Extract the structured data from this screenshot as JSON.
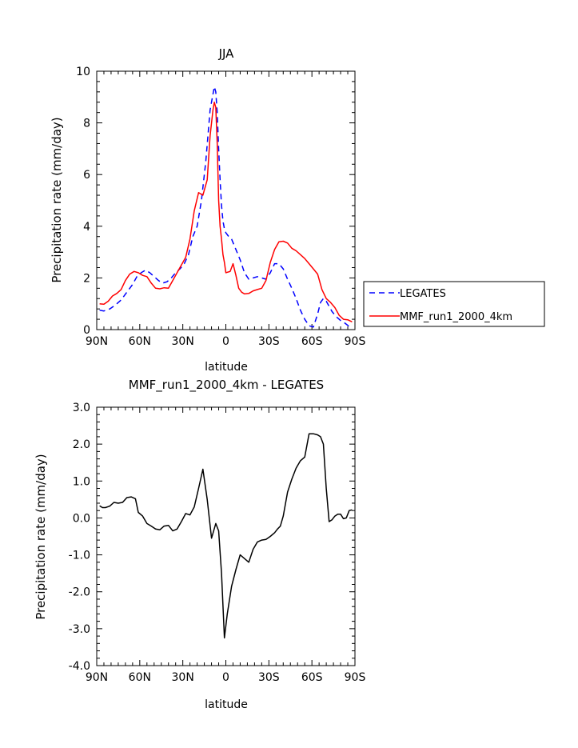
{
  "chart_data": [
    {
      "type": "line",
      "title": "JJA",
      "xlabel": "latitude",
      "ylabel": "Precipitation rate (mm/day)",
      "xlim": [
        90,
        -90
      ],
      "ylim": [
        0,
        10
      ],
      "x_ticks": [
        90,
        60,
        30,
        0,
        -30,
        -60,
        -90
      ],
      "x_tick_labels": [
        "90N",
        "60N",
        "30N",
        "0",
        "30S",
        "60S",
        "90S"
      ],
      "y_ticks": [
        0,
        2,
        4,
        6,
        8,
        10
      ],
      "y_tick_labels": [
        "0",
        "2",
        "4",
        "6",
        "8",
        "10"
      ],
      "legend_position": "right",
      "series": [
        {
          "name": "LEGATES",
          "color": "#0000ff",
          "dash": "dashed",
          "x": [
            88,
            85,
            81,
            77,
            73,
            69,
            65,
            62,
            59,
            56,
            53,
            50,
            47,
            44,
            41,
            38,
            35,
            32,
            29,
            26,
            23,
            20,
            17,
            14,
            11,
            8,
            7,
            6,
            5,
            4,
            3,
            2,
            1,
            0,
            -2,
            -4,
            -7,
            -10,
            -13,
            -16,
            -19,
            -22,
            -25,
            -28,
            -31,
            -34,
            -37,
            -40,
            -43,
            -46,
            -49,
            -52,
            -55,
            -58,
            -61,
            -64,
            -66,
            -68,
            -70,
            -72,
            -74,
            -77,
            -80,
            -83,
            -86,
            -88
          ],
          "y": [
            0.75,
            0.72,
            0.8,
            0.95,
            1.15,
            1.45,
            1.75,
            2.05,
            2.2,
            2.3,
            2.2,
            2.05,
            1.9,
            1.8,
            1.85,
            2.0,
            2.2,
            2.35,
            2.55,
            2.9,
            3.6,
            4.0,
            5.0,
            6.5,
            8.5,
            9.4,
            9.2,
            8.4,
            7.0,
            5.8,
            4.8,
            4.2,
            3.9,
            3.75,
            3.6,
            3.5,
            3.1,
            2.7,
            2.2,
            1.95,
            2.0,
            2.05,
            2.0,
            1.95,
            2.2,
            2.55,
            2.55,
            2.35,
            1.95,
            1.6,
            1.2,
            0.75,
            0.4,
            0.15,
            0.1,
            0.6,
            1.05,
            1.2,
            1.1,
            0.9,
            0.7,
            0.5,
            0.35,
            0.25,
            0.12,
            0.05
          ]
        },
        {
          "name": "MMF_run1_2000_4km",
          "color": "#ff0000",
          "dash": "solid",
          "x": [
            88,
            85,
            82,
            79,
            76,
            73,
            70,
            67,
            64,
            61,
            58,
            55,
            52,
            49,
            46,
            43,
            40,
            37,
            34,
            31,
            28,
            25,
            22,
            19,
            16,
            13,
            11,
            9,
            8,
            7,
            6,
            5,
            4,
            3,
            2,
            1,
            0,
            -3,
            -5,
            -7,
            -9,
            -11,
            -13,
            -16,
            -19,
            -22,
            -25,
            -28,
            -31,
            -34,
            -37,
            -40,
            -43,
            -46,
            -49,
            -52,
            -55,
            -58,
            -61,
            -64,
            -67,
            -70,
            -73,
            -76,
            -79,
            -82,
            -85,
            -88
          ],
          "y": [
            1.0,
            0.98,
            1.1,
            1.3,
            1.4,
            1.55,
            1.9,
            2.15,
            2.25,
            2.2,
            2.1,
            2.05,
            1.8,
            1.6,
            1.58,
            1.62,
            1.6,
            1.9,
            2.2,
            2.5,
            2.8,
            3.5,
            4.6,
            5.3,
            5.2,
            5.8,
            7.5,
            8.5,
            8.8,
            8.6,
            7.2,
            5.0,
            4.0,
            3.5,
            2.9,
            2.6,
            2.2,
            2.25,
            2.55,
            2.1,
            1.6,
            1.45,
            1.38,
            1.4,
            1.5,
            1.55,
            1.6,
            1.9,
            2.6,
            3.1,
            3.4,
            3.42,
            3.35,
            3.15,
            3.05,
            2.9,
            2.75,
            2.55,
            2.35,
            2.15,
            1.55,
            1.2,
            1.05,
            0.85,
            0.55,
            0.4,
            0.38,
            0.3
          ]
        }
      ]
    },
    {
      "type": "line",
      "title": "MMF_run1_2000_4km - LEGATES",
      "xlabel": "latitude",
      "ylabel": "Precipitation rate (mm/day)",
      "xlim": [
        90,
        -90
      ],
      "ylim": [
        -4,
        3
      ],
      "x_ticks": [
        90,
        60,
        30,
        0,
        -30,
        -60,
        -90
      ],
      "x_tick_labels": [
        "90N",
        "60N",
        "30N",
        "0",
        "30S",
        "60S",
        "90S"
      ],
      "y_ticks": [
        -4,
        -3,
        -2,
        -1,
        0,
        1,
        2,
        3
      ],
      "y_tick_labels": [
        "-4.0",
        "-3.0",
        "-2.0",
        "-1.0",
        "0.0",
        "1.0",
        "2.0",
        "3.0"
      ],
      "series": [
        {
          "color": "#000000",
          "dash": "solid",
          "x": [
            88,
            86,
            84,
            81,
            78,
            75,
            72,
            69,
            66,
            63,
            61,
            58,
            55,
            52,
            49,
            46,
            43,
            40,
            37,
            34,
            31,
            28,
            25,
            22,
            19,
            16,
            13,
            10,
            7,
            5,
            3,
            1,
            -1,
            -4,
            -7,
            -10,
            -13,
            -16,
            -19,
            -22,
            -25,
            -28,
            -31,
            -34,
            -36,
            -38,
            -40,
            -43,
            -46,
            -49,
            -52,
            -55,
            -58,
            -61,
            -64,
            -66,
            -68,
            -70,
            -72,
            -74,
            -76,
            -78,
            -80,
            -82,
            -84,
            -86,
            -88
          ],
          "y": [
            0.33,
            0.28,
            0.28,
            0.32,
            0.42,
            0.4,
            0.42,
            0.55,
            0.57,
            0.52,
            0.15,
            0.05,
            -0.15,
            -0.22,
            -0.3,
            -0.32,
            -0.22,
            -0.2,
            -0.35,
            -0.3,
            -0.1,
            0.12,
            0.08,
            0.3,
            0.8,
            1.32,
            0.5,
            -0.55,
            -0.15,
            -0.35,
            -1.5,
            -3.25,
            -2.6,
            -1.85,
            -1.4,
            -1.0,
            -1.1,
            -1.2,
            -0.85,
            -0.65,
            -0.6,
            -0.58,
            -0.5,
            -0.4,
            -0.3,
            -0.22,
            0.05,
            0.7,
            1.05,
            1.35,
            1.55,
            1.65,
            2.28,
            2.28,
            2.25,
            2.2,
            2.0,
            0.8,
            -0.1,
            -0.05,
            0.05,
            0.1,
            0.1,
            -0.02,
            0.0,
            0.2,
            0.22
          ]
        }
      ]
    }
  ],
  "colors": {
    "legates": "#0000ff",
    "mmf": "#ff0000",
    "difference": "#000000"
  }
}
